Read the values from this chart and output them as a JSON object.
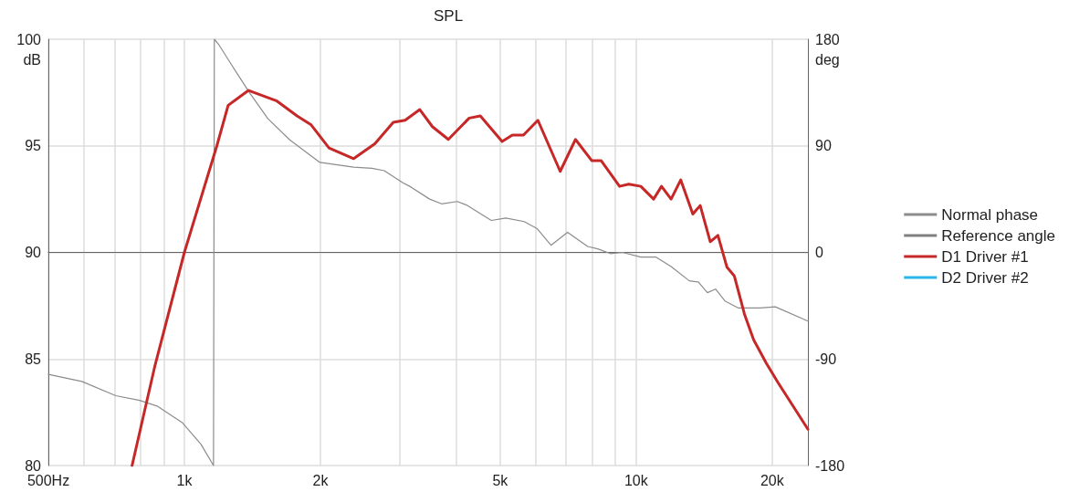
{
  "chart_data": {
    "type": "line",
    "title": "SPL",
    "ylabel": "dB",
    "y2label": "deg",
    "log": "x",
    "grid": true,
    "legend": "right",
    "marker": "none",
    "line_style": "solid",
    "xlim": [
      500,
      24000
    ],
    "xticks": [
      {
        "value": 500,
        "label": "500Hz"
      },
      {
        "value": 600,
        "label": null
      },
      {
        "value": 700,
        "label": null
      },
      {
        "value": 800,
        "label": null
      },
      {
        "value": 900,
        "label": null
      },
      {
        "value": 1000,
        "label": "1k"
      },
      {
        "value": 2000,
        "label": "2k"
      },
      {
        "value": 3000,
        "label": null
      },
      {
        "value": 4000,
        "label": null
      },
      {
        "value": 5000,
        "label": "5k"
      },
      {
        "value": 6000,
        "label": null
      },
      {
        "value": 7000,
        "label": null
      },
      {
        "value": 8000,
        "label": null
      },
      {
        "value": 9000,
        "label": null
      },
      {
        "value": 10000,
        "label": "10k"
      },
      {
        "value": 20000,
        "label": "20k"
      }
    ],
    "ylim": [
      80,
      100
    ],
    "yticks": [
      80,
      85,
      90,
      95,
      100
    ],
    "y2lim": [
      -180,
      180
    ],
    "y2ticks": [
      -180,
      -90,
      0,
      90,
      180
    ],
    "series": [
      {
        "name": "Normal phase",
        "color": "#8c8c8c",
        "axis": "y2",
        "x": [
          500,
          593,
          705,
          796,
          873,
          991,
          1088,
          1160,
          1165,
          1194,
          1269,
          1393,
          1530,
          1711,
          1995,
          2370,
          2603,
          2770,
          3040,
          3180,
          3490,
          3710,
          4020,
          4210,
          4780,
          5150,
          5650,
          6040,
          6480,
          7050,
          7810,
          8220,
          8770,
          9330,
          10240,
          11070,
          11950,
          13110,
          13730,
          14380,
          14990,
          15720,
          16840,
          18800,
          20330,
          24000
        ],
        "values": [
          -103,
          -109,
          -121,
          -125,
          -130,
          -144,
          -162,
          -180,
          180,
          175,
          159,
          135,
          113,
          95,
          76,
          72,
          71,
          69,
          59,
          55,
          45,
          41,
          43,
          40,
          27,
          29,
          26,
          20,
          6,
          17,
          5,
          3,
          -1,
          0,
          -4,
          -4,
          -12,
          -24,
          -25,
          -34,
          -31,
          -41,
          -47,
          -47,
          -46,
          -58
        ]
      },
      {
        "name": "Reference angle",
        "color": "#808080",
        "axis": "y2"
      },
      {
        "name": "D1 Driver #1",
        "color": "#c62828",
        "x": [
          766,
          861,
          1000,
          1180,
          1250,
          1387,
          1603,
          1776,
          1905,
          2090,
          2370,
          2640,
          2900,
          3080,
          3320,
          3540,
          3840,
          4270,
          4520,
          5050,
          5320,
          5630,
          6060,
          6790,
          7340,
          7980,
          8370,
          9190,
          9630,
          10240,
          10930,
          11380,
          11950,
          12550,
          13350,
          13860,
          14590,
          15170,
          15890,
          16490,
          17370,
          18200,
          19420,
          20600,
          24000
        ],
        "values": [
          80.0,
          84.7,
          90.0,
          95.0,
          96.9,
          97.6,
          97.1,
          96.4,
          96.0,
          94.9,
          94.4,
          95.1,
          96.1,
          96.2,
          96.7,
          95.9,
          95.3,
          96.3,
          96.4,
          95.2,
          95.5,
          95.5,
          96.2,
          93.8,
          95.3,
          94.3,
          94.3,
          93.1,
          93.2,
          93.1,
          92.5,
          93.1,
          92.5,
          93.4,
          91.8,
          92.2,
          90.5,
          90.8,
          89.3,
          88.9,
          87.1,
          85.9,
          84.8,
          83.9,
          81.7
        ]
      },
      {
        "name": "D2 Driver #2",
        "color": "#29b6e8"
      }
    ]
  }
}
